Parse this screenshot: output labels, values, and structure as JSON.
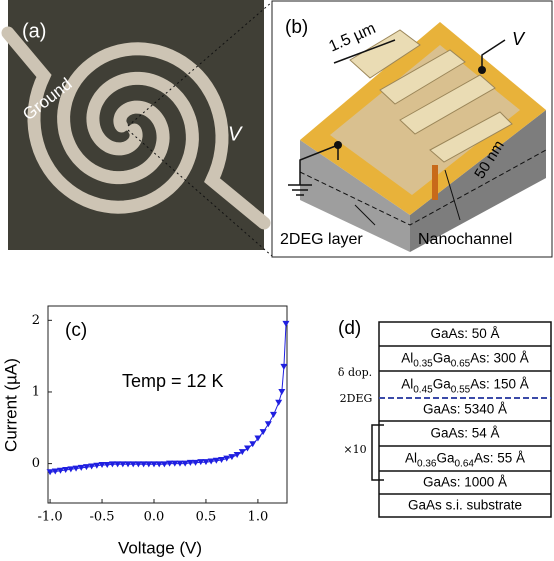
{
  "panel_a": {
    "label": "(a)",
    "ground": "Ground",
    "v": "V"
  },
  "panel_b": {
    "label": "(b)",
    "scale": "1.5 µm",
    "v": "V",
    "depth": "50 nm",
    "layer": "2DEG layer",
    "channel": "Nanochannel"
  },
  "chart_data": {
    "type": "line",
    "label": "(c)",
    "annotation": "Temp = 12 K",
    "xlabel": "Voltage (V)",
    "ylabel": "Current (µA)",
    "x": [
      -1.0,
      -0.95,
      -0.9,
      -0.85,
      -0.8,
      -0.75,
      -0.7,
      -0.65,
      -0.6,
      -0.55,
      -0.5,
      -0.45,
      -0.4,
      -0.35,
      -0.3,
      -0.25,
      -0.2,
      -0.15,
      -0.1,
      -0.05,
      0,
      0.05,
      0.1,
      0.15,
      0.2,
      0.25,
      0.3,
      0.35,
      0.4,
      0.45,
      0.5,
      0.55,
      0.6,
      0.65,
      0.7,
      0.75,
      0.8,
      0.85,
      0.9,
      0.95,
      1.0,
      1.05,
      1.1,
      1.15,
      1.2,
      1.23,
      1.25,
      1.27
    ],
    "series": [
      {
        "color": "#1f1fe0",
        "values": [
          -0.12,
          -0.11,
          -0.1,
          -0.09,
          -0.08,
          -0.07,
          -0.06,
          -0.05,
          -0.04,
          -0.03,
          -0.02,
          -0.02,
          -0.01,
          -0.01,
          -0.01,
          -0.01,
          -0.01,
          -0.01,
          -0.01,
          -0.01,
          -0.01,
          -0.01,
          -0.01,
          0,
          0,
          0,
          0,
          0.01,
          0.01,
          0.02,
          0.02,
          0.03,
          0.04,
          0.05,
          0.07,
          0.09,
          0.12,
          0.16,
          0.21,
          0.27,
          0.35,
          0.44,
          0.55,
          0.68,
          0.85,
          1.0,
          1.35,
          1.95
        ]
      }
    ],
    "xlim": [
      -1.02,
      1.28
    ],
    "xticks": [
      {
        "value": -1,
        "label": "-1.0"
      },
      {
        "value": -0.5,
        "label": "-0.5"
      },
      {
        "value": 0,
        "label": "0.0"
      },
      {
        "value": 0.5,
        "label": "0.5"
      },
      {
        "value": 1,
        "label": "1.0"
      }
    ],
    "ylim": [
      -0.55,
      2.2
    ],
    "yticks": [
      0,
      1,
      2
    ]
  },
  "panel_d": {
    "label": "(d)",
    "layers": [
      [
        "GaAs: 50 Å"
      ],
      [
        "Al",
        "0.35",
        "Ga",
        "0.65",
        "As: 300 Å"
      ],
      [
        "Al",
        "0.45",
        "Ga",
        "0.55",
        "As: 150 Å"
      ],
      [
        "GaAs: 5340 Å"
      ],
      [
        "GaAs: 54 Å"
      ],
      [
        "Al",
        "0.36",
        "Ga",
        "0.64",
        "As: 55 Å"
      ],
      [
        "GaAs: 1000 Å"
      ],
      [
        "GaAs s.i. substrate"
      ]
    ],
    "delta": "δ dop.",
    "twodeg": "2DEG",
    "repeat": "×10"
  }
}
